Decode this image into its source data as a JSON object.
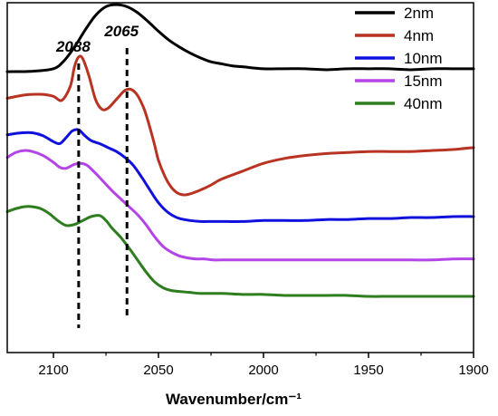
{
  "chart_data": {
    "type": "line",
    "xlabel": "Wavenumber/cm⁻¹",
    "ylabel": "",
    "xlim": [
      2122,
      1900
    ],
    "x_reversed": true,
    "y_axis_visible": false,
    "ylim": [
      -2.9,
      0.65
    ],
    "xticks": [
      2100,
      2050,
      2000,
      1950,
      1900
    ],
    "xtick_labels": [
      "2100",
      "2050",
      "2000",
      "1950",
      "1900"
    ],
    "grid": false,
    "legend_position": "top-right",
    "annotations": [
      {
        "label": "2088",
        "x": 2088,
        "style": "dashed-vertical-line"
      },
      {
        "label": "2065",
        "x": 2065,
        "style": "dashed-vertical-line"
      }
    ],
    "series": [
      {
        "name": "2nm",
        "color": "#000000",
        "x": [
          2122,
          2110,
          2100,
          2095,
          2090,
          2085,
          2080,
          2075,
          2070,
          2065,
          2060,
          2055,
          2050,
          2045,
          2040,
          2035,
          2030,
          2025,
          2020,
          2015,
          2010,
          2000,
          1990,
          1980,
          1970,
          1960,
          1950,
          1940,
          1930,
          1920,
          1910,
          1900
        ],
        "y": [
          -0.05,
          -0.045,
          -0.02,
          0.06,
          0.2,
          0.37,
          0.52,
          0.61,
          0.63,
          0.61,
          0.55,
          0.46,
          0.36,
          0.27,
          0.2,
          0.14,
          0.09,
          0.05,
          0.03,
          0.01,
          0.0,
          -0.02,
          -0.02,
          -0.02,
          -0.03,
          -0.02,
          -0.02,
          -0.02,
          -0.03,
          -0.02,
          -0.02,
          -0.02
        ]
      },
      {
        "name": "4nm",
        "color": "#b83322",
        "x": [
          2122,
          2115,
          2110,
          2105,
          2100,
          2096,
          2092,
          2090,
          2088,
          2086,
          2083,
          2080,
          2077,
          2074,
          2070,
          2066,
          2063,
          2060,
          2057,
          2055,
          2052,
          2050,
          2047,
          2044,
          2041,
          2038,
          2035,
          2030,
          2025,
          2020,
          2010,
          2000,
          1990,
          1980,
          1970,
          1960,
          1950,
          1940,
          1930,
          1920,
          1910,
          1900
        ],
        "y": [
          -0.32,
          -0.29,
          -0.28,
          -0.28,
          -0.3,
          -0.34,
          -0.2,
          0.0,
          0.1,
          0.08,
          -0.1,
          -0.33,
          -0.43,
          -0.42,
          -0.33,
          -0.24,
          -0.23,
          -0.29,
          -0.42,
          -0.55,
          -0.78,
          -0.95,
          -1.11,
          -1.22,
          -1.28,
          -1.3,
          -1.29,
          -1.25,
          -1.2,
          -1.14,
          -1.06,
          -0.98,
          -0.93,
          -0.9,
          -0.88,
          -0.87,
          -0.86,
          -0.86,
          -0.86,
          -0.85,
          -0.84,
          -0.82
        ]
      },
      {
        "name": "10nm",
        "color": "#1111dd",
        "x": [
          2122,
          2115,
          2110,
          2105,
          2100,
          2097,
          2094,
          2091,
          2088,
          2085,
          2082,
          2078,
          2074,
          2070,
          2066,
          2062,
          2058,
          2055,
          2052,
          2050,
          2047,
          2044,
          2040,
          2035,
          2030,
          2025,
          2020,
          2010,
          2000,
          1990,
          1980,
          1970,
          1960,
          1950,
          1940,
          1930,
          1920,
          1910,
          1900
        ],
        "y": [
          -0.69,
          -0.67,
          -0.67,
          -0.7,
          -0.76,
          -0.78,
          -0.72,
          -0.65,
          -0.64,
          -0.7,
          -0.75,
          -0.78,
          -0.82,
          -0.86,
          -0.92,
          -1.0,
          -1.12,
          -1.22,
          -1.32,
          -1.38,
          -1.45,
          -1.5,
          -1.54,
          -1.56,
          -1.57,
          -1.57,
          -1.57,
          -1.57,
          -1.56,
          -1.56,
          -1.56,
          -1.55,
          -1.55,
          -1.54,
          -1.54,
          -1.53,
          -1.53,
          -1.52,
          -1.52
        ]
      },
      {
        "name": "15nm",
        "color": "#b344e8",
        "x": [
          2122,
          2118,
          2114,
          2110,
          2105,
          2100,
          2097,
          2094,
          2090,
          2087,
          2084,
          2080,
          2076,
          2072,
          2068,
          2064,
          2060,
          2056,
          2052,
          2048,
          2044,
          2040,
          2036,
          2032,
          2028,
          2024,
          2020,
          2010,
          2000,
          1990,
          1980,
          1970,
          1960,
          1950,
          1940,
          1930,
          1920,
          1910,
          1900
        ],
        "y": [
          -0.92,
          -0.87,
          -0.85,
          -0.86,
          -0.9,
          -0.97,
          -1.02,
          -1.03,
          -0.99,
          -0.98,
          -1.0,
          -1.08,
          -1.17,
          -1.26,
          -1.34,
          -1.42,
          -1.5,
          -1.6,
          -1.72,
          -1.82,
          -1.88,
          -1.92,
          -1.94,
          -1.95,
          -1.95,
          -1.96,
          -1.96,
          -1.96,
          -1.96,
          -1.96,
          -1.96,
          -1.96,
          -1.96,
          -1.96,
          -1.96,
          -1.96,
          -1.96,
          -1.95,
          -1.95
        ]
      },
      {
        "name": "40nm",
        "color": "#2e7d1e",
        "x": [
          2122,
          2118,
          2114,
          2110,
          2106,
          2102,
          2098,
          2094,
          2090,
          2086,
          2082,
          2078,
          2075,
          2072,
          2068,
          2064,
          2060,
          2056,
          2052,
          2048,
          2044,
          2040,
          2035,
          2030,
          2020,
          2010,
          2000,
          1990,
          1980,
          1970,
          1960,
          1950,
          1940,
          1930,
          1920,
          1910,
          1900
        ],
        "y": [
          -1.47,
          -1.44,
          -1.42,
          -1.42,
          -1.44,
          -1.49,
          -1.56,
          -1.61,
          -1.6,
          -1.56,
          -1.52,
          -1.51,
          -1.56,
          -1.64,
          -1.73,
          -1.84,
          -1.96,
          -2.08,
          -2.18,
          -2.24,
          -2.27,
          -2.28,
          -2.29,
          -2.3,
          -2.3,
          -2.31,
          -2.31,
          -2.32,
          -2.32,
          -2.32,
          -2.32,
          -2.33,
          -2.33,
          -2.33,
          -2.33,
          -2.33,
          -2.33
        ]
      }
    ]
  }
}
